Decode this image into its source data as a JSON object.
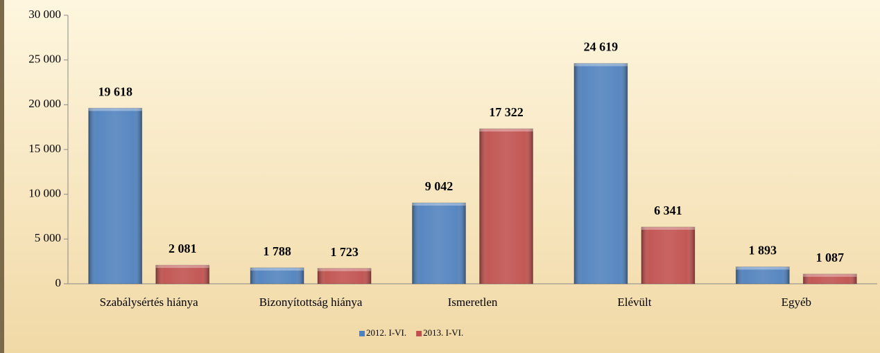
{
  "chart_data": {
    "type": "bar",
    "categories": [
      "Szabálysértés hiánya",
      "Bizonyítottság hiánya",
      "Ismeretlen",
      "Elévült",
      "Egyéb"
    ],
    "series": [
      {
        "name": "2012. I-VI.",
        "color": "#4f81bd",
        "values": [
          19618,
          1788,
          9042,
          24619,
          1893
        ],
        "value_labels": [
          "19 618",
          "1 788",
          "9 042",
          "24 619",
          "1 893"
        ]
      },
      {
        "name": "2013. I-VI.",
        "color": "#c0504d",
        "values": [
          2081,
          1723,
          17322,
          6341,
          1087
        ],
        "value_labels": [
          "2 081",
          "1 723",
          "17 322",
          "6 341",
          "1 087"
        ]
      }
    ],
    "ylim": [
      0,
      30000
    ],
    "yticks": [
      0,
      {
        "value": 5000,
        "label": "5 000"
      },
      {
        "value": 10000,
        "label": "10 000"
      },
      {
        "value": 15000,
        "label": "15 000"
      },
      {
        "value": 20000,
        "label": "20 000"
      },
      {
        "value": 25000,
        "label": "25 000"
      },
      {
        "value": 30000,
        "label": "30 000"
      }
    ],
    "legend": "bottom"
  }
}
